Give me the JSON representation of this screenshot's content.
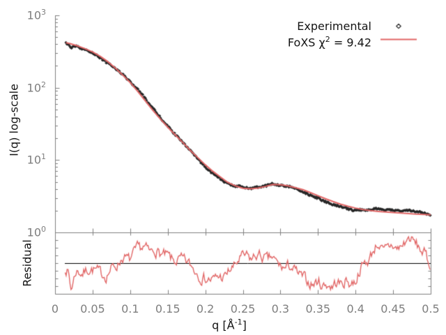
{
  "figure": {
    "background": "#ffffff",
    "colors": {
      "axis": "#808080",
      "tick_label": "#7e7e7e",
      "text": "#141414",
      "experimental": "#262626",
      "fit": "#e26767",
      "baseline": "#000000"
    },
    "legend": {
      "experimental_label": "Experimental",
      "fit_prefix": "FoXS χ",
      "fit_sup": "2",
      "fit_suffix": " = 9.42",
      "chi_square_value": 9.42,
      "experimental_marker": "diamond"
    }
  },
  "chart_data": {
    "type": "line",
    "title": "",
    "xlabel": {
      "prefix": "q [Å",
      "sup": "-1",
      "suffix": "]"
    },
    "xlim": [
      0,
      0.5
    ],
    "x_tick_values": [
      0,
      0.05,
      0.1,
      0.15,
      0.2,
      0.25,
      0.3,
      0.35,
      0.4,
      0.45,
      0.5
    ],
    "x_tick_labels": [
      "0",
      "0.05",
      "0.1",
      "0.15",
      "0.2",
      "0.25",
      "0.3",
      "0.35",
      "0.4",
      "0.45",
      "0.5"
    ],
    "main": {
      "ylabel": "I(q) log-scale",
      "yscale": "log",
      "ylim": [
        1,
        1000
      ],
      "y_ticks": [
        {
          "label_base": "10",
          "label_exp": "3",
          "value": 1000
        },
        {
          "label_base": "10",
          "label_exp": "2",
          "value": 100
        },
        {
          "label_base": "10",
          "label_exp": "1",
          "value": 10
        },
        {
          "label_base": "10",
          "label_exp": "0",
          "value": 1
        }
      ],
      "fit_series": {
        "name": "FoXS fit",
        "q": [
          0.0145,
          0.02,
          0.03,
          0.04,
          0.05,
          0.06,
          0.07,
          0.08,
          0.09,
          0.1,
          0.11,
          0.12,
          0.13,
          0.14,
          0.15,
          0.16,
          0.17,
          0.18,
          0.19,
          0.2,
          0.21,
          0.22,
          0.23,
          0.24,
          0.25,
          0.26,
          0.27,
          0.28,
          0.29,
          0.3,
          0.31,
          0.32,
          0.33,
          0.34,
          0.35,
          0.36,
          0.37,
          0.38,
          0.39,
          0.4,
          0.41,
          0.42,
          0.43,
          0.44,
          0.45,
          0.46,
          0.47,
          0.48,
          0.49,
          0.5
        ],
        "I": [
          418,
          407,
          378,
          345,
          312,
          272,
          230,
          188,
          150,
          118,
          89,
          66,
          49,
          37,
          28.5,
          22.3,
          17.5,
          13.6,
          10.8,
          8.6,
          7.0,
          5.85,
          4.9,
          4.4,
          4.08,
          4.0,
          4.1,
          4.32,
          4.6,
          4.55,
          4.4,
          4.15,
          3.9,
          3.55,
          3.22,
          2.92,
          2.67,
          2.46,
          2.3,
          2.17,
          2.07,
          2.0,
          1.95,
          1.91,
          1.88,
          1.85,
          1.82,
          1.79,
          1.77,
          1.75
        ]
      },
      "experimental_model": {
        "name": "Experimental",
        "marker": "diamond",
        "q_start": 0.0145,
        "q_end": 0.4995,
        "n_points": 390,
        "deviation_coupling_decades": 0.06,
        "jitter_decades": 0.012
      }
    },
    "residual": {
      "ylabel": "Residual",
      "baseline_value": 1,
      "q": [
        0.014,
        0.018,
        0.021,
        0.028,
        0.037,
        0.045,
        0.053,
        0.06,
        0.068,
        0.074,
        0.084,
        0.09,
        0.099,
        0.11,
        0.118,
        0.127,
        0.133,
        0.142,
        0.151,
        0.158,
        0.167,
        0.177,
        0.186,
        0.195,
        0.202,
        0.211,
        0.217,
        0.226,
        0.232,
        0.239,
        0.246,
        0.254,
        0.262,
        0.268,
        0.276,
        0.283,
        0.288,
        0.295,
        0.3,
        0.307,
        0.313,
        0.319,
        0.325,
        0.332,
        0.337,
        0.344,
        0.35,
        0.356,
        0.362,
        0.369,
        0.374,
        0.381,
        0.388,
        0.393,
        0.4,
        0.406,
        0.412,
        0.418,
        0.425,
        0.43,
        0.437,
        0.443,
        0.449,
        0.455,
        0.462,
        0.467,
        0.472,
        0.479,
        0.485,
        0.493,
        0.497,
        0.5
      ],
      "v": [
        -0.14,
        -0.3,
        -0.86,
        -0.23,
        -0.32,
        -0.17,
        -0.21,
        -0.32,
        -0.39,
        -0.19,
        -0.01,
        0.21,
        0.1,
        0.46,
        0.54,
        0.34,
        0.46,
        0.28,
        0.21,
        0.06,
        0.12,
        0.01,
        -0.21,
        -0.43,
        -0.5,
        -0.54,
        -0.43,
        -0.46,
        -0.23,
        -0.1,
        0.17,
        0.23,
        0.12,
        0.28,
        0.21,
        0.1,
        0.21,
        0.01,
        -0.1,
        -0.17,
        -0.06,
        -0.23,
        -0.39,
        -0.5,
        -0.61,
        -0.68,
        -0.57,
        -0.72,
        -0.66,
        -0.77,
        -0.61,
        -0.68,
        -0.54,
        -0.66,
        -0.57,
        -0.17,
        -0.01,
        0.12,
        0.5,
        0.68,
        0.34,
        0.5,
        0.61,
        0.46,
        0.57,
        0.72,
        0.83,
        0.66,
        0.5,
        0.28,
        0.01,
        0.0
      ],
      "noise": {
        "ar": 0.55,
        "amp": 0.16
      }
    }
  }
}
